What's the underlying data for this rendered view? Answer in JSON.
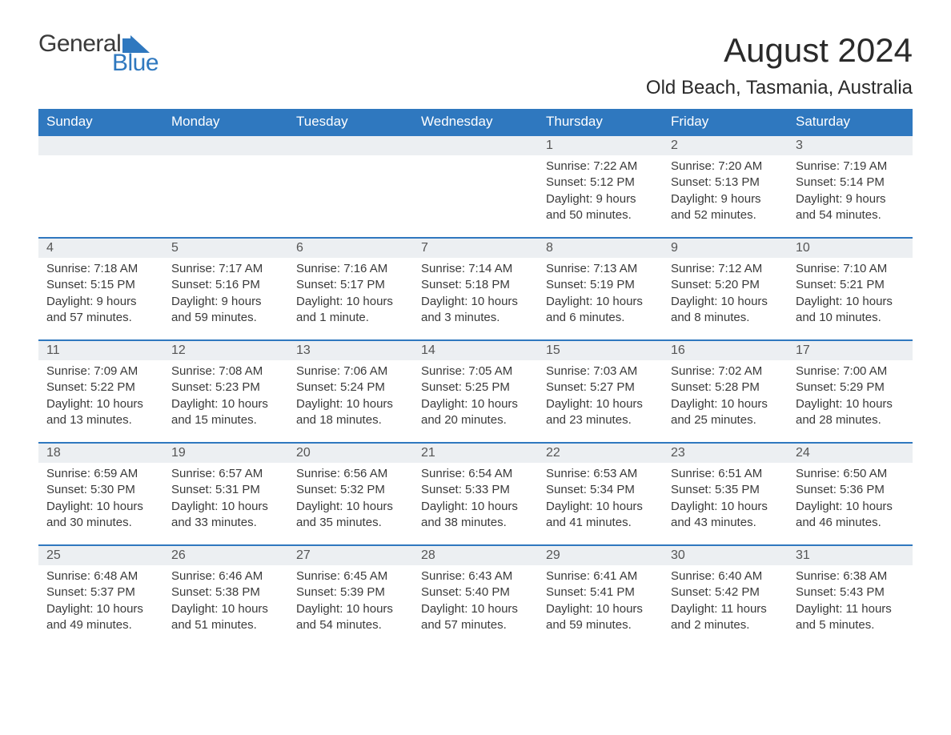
{
  "logo": {
    "word1": "General",
    "word2": "Blue"
  },
  "title": "August 2024",
  "location": "Old Beach, Tasmania, Australia",
  "colors": {
    "header_bg": "#2f78bf",
    "header_text": "#ffffff",
    "daynum_bg": "#eceff2",
    "text": "#333333",
    "logo_dark": "#3a3a3a",
    "logo_blue": "#2f78bf"
  },
  "weekdays": [
    "Sunday",
    "Monday",
    "Tuesday",
    "Wednesday",
    "Thursday",
    "Friday",
    "Saturday"
  ],
  "weeks": [
    [
      null,
      null,
      null,
      null,
      {
        "n": "1",
        "sr": "Sunrise: 7:22 AM",
        "ss": "Sunset: 5:12 PM",
        "dl": "Daylight: 9 hours and 50 minutes."
      },
      {
        "n": "2",
        "sr": "Sunrise: 7:20 AM",
        "ss": "Sunset: 5:13 PM",
        "dl": "Daylight: 9 hours and 52 minutes."
      },
      {
        "n": "3",
        "sr": "Sunrise: 7:19 AM",
        "ss": "Sunset: 5:14 PM",
        "dl": "Daylight: 9 hours and 54 minutes."
      }
    ],
    [
      {
        "n": "4",
        "sr": "Sunrise: 7:18 AM",
        "ss": "Sunset: 5:15 PM",
        "dl": "Daylight: 9 hours and 57 minutes."
      },
      {
        "n": "5",
        "sr": "Sunrise: 7:17 AM",
        "ss": "Sunset: 5:16 PM",
        "dl": "Daylight: 9 hours and 59 minutes."
      },
      {
        "n": "6",
        "sr": "Sunrise: 7:16 AM",
        "ss": "Sunset: 5:17 PM",
        "dl": "Daylight: 10 hours and 1 minute."
      },
      {
        "n": "7",
        "sr": "Sunrise: 7:14 AM",
        "ss": "Sunset: 5:18 PM",
        "dl": "Daylight: 10 hours and 3 minutes."
      },
      {
        "n": "8",
        "sr": "Sunrise: 7:13 AM",
        "ss": "Sunset: 5:19 PM",
        "dl": "Daylight: 10 hours and 6 minutes."
      },
      {
        "n": "9",
        "sr": "Sunrise: 7:12 AM",
        "ss": "Sunset: 5:20 PM",
        "dl": "Daylight: 10 hours and 8 minutes."
      },
      {
        "n": "10",
        "sr": "Sunrise: 7:10 AM",
        "ss": "Sunset: 5:21 PM",
        "dl": "Daylight: 10 hours and 10 minutes."
      }
    ],
    [
      {
        "n": "11",
        "sr": "Sunrise: 7:09 AM",
        "ss": "Sunset: 5:22 PM",
        "dl": "Daylight: 10 hours and 13 minutes."
      },
      {
        "n": "12",
        "sr": "Sunrise: 7:08 AM",
        "ss": "Sunset: 5:23 PM",
        "dl": "Daylight: 10 hours and 15 minutes."
      },
      {
        "n": "13",
        "sr": "Sunrise: 7:06 AM",
        "ss": "Sunset: 5:24 PM",
        "dl": "Daylight: 10 hours and 18 minutes."
      },
      {
        "n": "14",
        "sr": "Sunrise: 7:05 AM",
        "ss": "Sunset: 5:25 PM",
        "dl": "Daylight: 10 hours and 20 minutes."
      },
      {
        "n": "15",
        "sr": "Sunrise: 7:03 AM",
        "ss": "Sunset: 5:27 PM",
        "dl": "Daylight: 10 hours and 23 minutes."
      },
      {
        "n": "16",
        "sr": "Sunrise: 7:02 AM",
        "ss": "Sunset: 5:28 PM",
        "dl": "Daylight: 10 hours and 25 minutes."
      },
      {
        "n": "17",
        "sr": "Sunrise: 7:00 AM",
        "ss": "Sunset: 5:29 PM",
        "dl": "Daylight: 10 hours and 28 minutes."
      }
    ],
    [
      {
        "n": "18",
        "sr": "Sunrise: 6:59 AM",
        "ss": "Sunset: 5:30 PM",
        "dl": "Daylight: 10 hours and 30 minutes."
      },
      {
        "n": "19",
        "sr": "Sunrise: 6:57 AM",
        "ss": "Sunset: 5:31 PM",
        "dl": "Daylight: 10 hours and 33 minutes."
      },
      {
        "n": "20",
        "sr": "Sunrise: 6:56 AM",
        "ss": "Sunset: 5:32 PM",
        "dl": "Daylight: 10 hours and 35 minutes."
      },
      {
        "n": "21",
        "sr": "Sunrise: 6:54 AM",
        "ss": "Sunset: 5:33 PM",
        "dl": "Daylight: 10 hours and 38 minutes."
      },
      {
        "n": "22",
        "sr": "Sunrise: 6:53 AM",
        "ss": "Sunset: 5:34 PM",
        "dl": "Daylight: 10 hours and 41 minutes."
      },
      {
        "n": "23",
        "sr": "Sunrise: 6:51 AM",
        "ss": "Sunset: 5:35 PM",
        "dl": "Daylight: 10 hours and 43 minutes."
      },
      {
        "n": "24",
        "sr": "Sunrise: 6:50 AM",
        "ss": "Sunset: 5:36 PM",
        "dl": "Daylight: 10 hours and 46 minutes."
      }
    ],
    [
      {
        "n": "25",
        "sr": "Sunrise: 6:48 AM",
        "ss": "Sunset: 5:37 PM",
        "dl": "Daylight: 10 hours and 49 minutes."
      },
      {
        "n": "26",
        "sr": "Sunrise: 6:46 AM",
        "ss": "Sunset: 5:38 PM",
        "dl": "Daylight: 10 hours and 51 minutes."
      },
      {
        "n": "27",
        "sr": "Sunrise: 6:45 AM",
        "ss": "Sunset: 5:39 PM",
        "dl": "Daylight: 10 hours and 54 minutes."
      },
      {
        "n": "28",
        "sr": "Sunrise: 6:43 AM",
        "ss": "Sunset: 5:40 PM",
        "dl": "Daylight: 10 hours and 57 minutes."
      },
      {
        "n": "29",
        "sr": "Sunrise: 6:41 AM",
        "ss": "Sunset: 5:41 PM",
        "dl": "Daylight: 10 hours and 59 minutes."
      },
      {
        "n": "30",
        "sr": "Sunrise: 6:40 AM",
        "ss": "Sunset: 5:42 PM",
        "dl": "Daylight: 11 hours and 2 minutes."
      },
      {
        "n": "31",
        "sr": "Sunrise: 6:38 AM",
        "ss": "Sunset: 5:43 PM",
        "dl": "Daylight: 11 hours and 5 minutes."
      }
    ]
  ]
}
